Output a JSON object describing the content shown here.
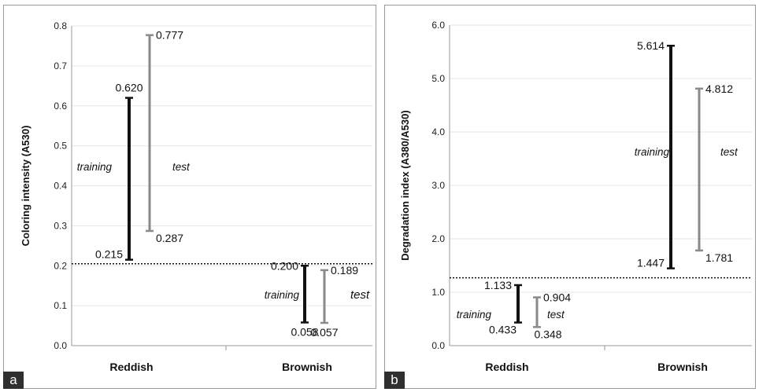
{
  "chart_data": [
    {
      "type": "range-bar",
      "panel_label": "a",
      "ylabel": "Coloring intensity (A530)",
      "ylim": [
        0,
        0.8
      ],
      "yticks": [
        "0.0",
        "0.1",
        "0.2",
        "0.3",
        "0.4",
        "0.5",
        "0.6",
        "0.7",
        "0.8"
      ],
      "categories": [
        "Reddish",
        "Brownish"
      ],
      "threshold": 0.205,
      "series": [
        {
          "name": "training",
          "color": "#111111",
          "ranges": [
            {
              "low": 0.215,
              "high": 0.62,
              "low_label": "0.215",
              "high_label": "0.620"
            },
            {
              "low": 0.058,
              "high": 0.2,
              "low_label": "0.058",
              "high_label": "0.200"
            }
          ]
        },
        {
          "name": "test",
          "color": "#8a8a8a",
          "ranges": [
            {
              "low": 0.287,
              "high": 0.777,
              "low_label": "0.287",
              "high_label": "0.777"
            },
            {
              "low": 0.057,
              "high": 0.189,
              "low_label": "0.057",
              "high_label": "0.189"
            }
          ]
        }
      ]
    },
    {
      "type": "range-bar",
      "panel_label": "b",
      "ylabel": "Degradation index (A380/A530)",
      "ylim": [
        0,
        6
      ],
      "yticks": [
        "0.0",
        "1.0",
        "2.0",
        "3.0",
        "4.0",
        "5.0",
        "6.0"
      ],
      "categories": [
        "Reddish",
        "Brownish"
      ],
      "threshold": 1.27,
      "series": [
        {
          "name": "training",
          "color": "#111111",
          "ranges": [
            {
              "low": 0.433,
              "high": 1.133,
              "low_label": "0.433",
              "high_label": "1.133"
            },
            {
              "low": 1.447,
              "high": 5.614,
              "low_label": "1.447",
              "high_label": "5.614"
            }
          ]
        },
        {
          "name": "test",
          "color": "#8a8a8a",
          "ranges": [
            {
              "low": 0.348,
              "high": 0.904,
              "low_label": "0.348",
              "high_label": "0.904"
            },
            {
              "low": 1.781,
              "high": 4.812,
              "low_label": "1.781",
              "high_label": "4.812"
            }
          ]
        }
      ]
    }
  ]
}
